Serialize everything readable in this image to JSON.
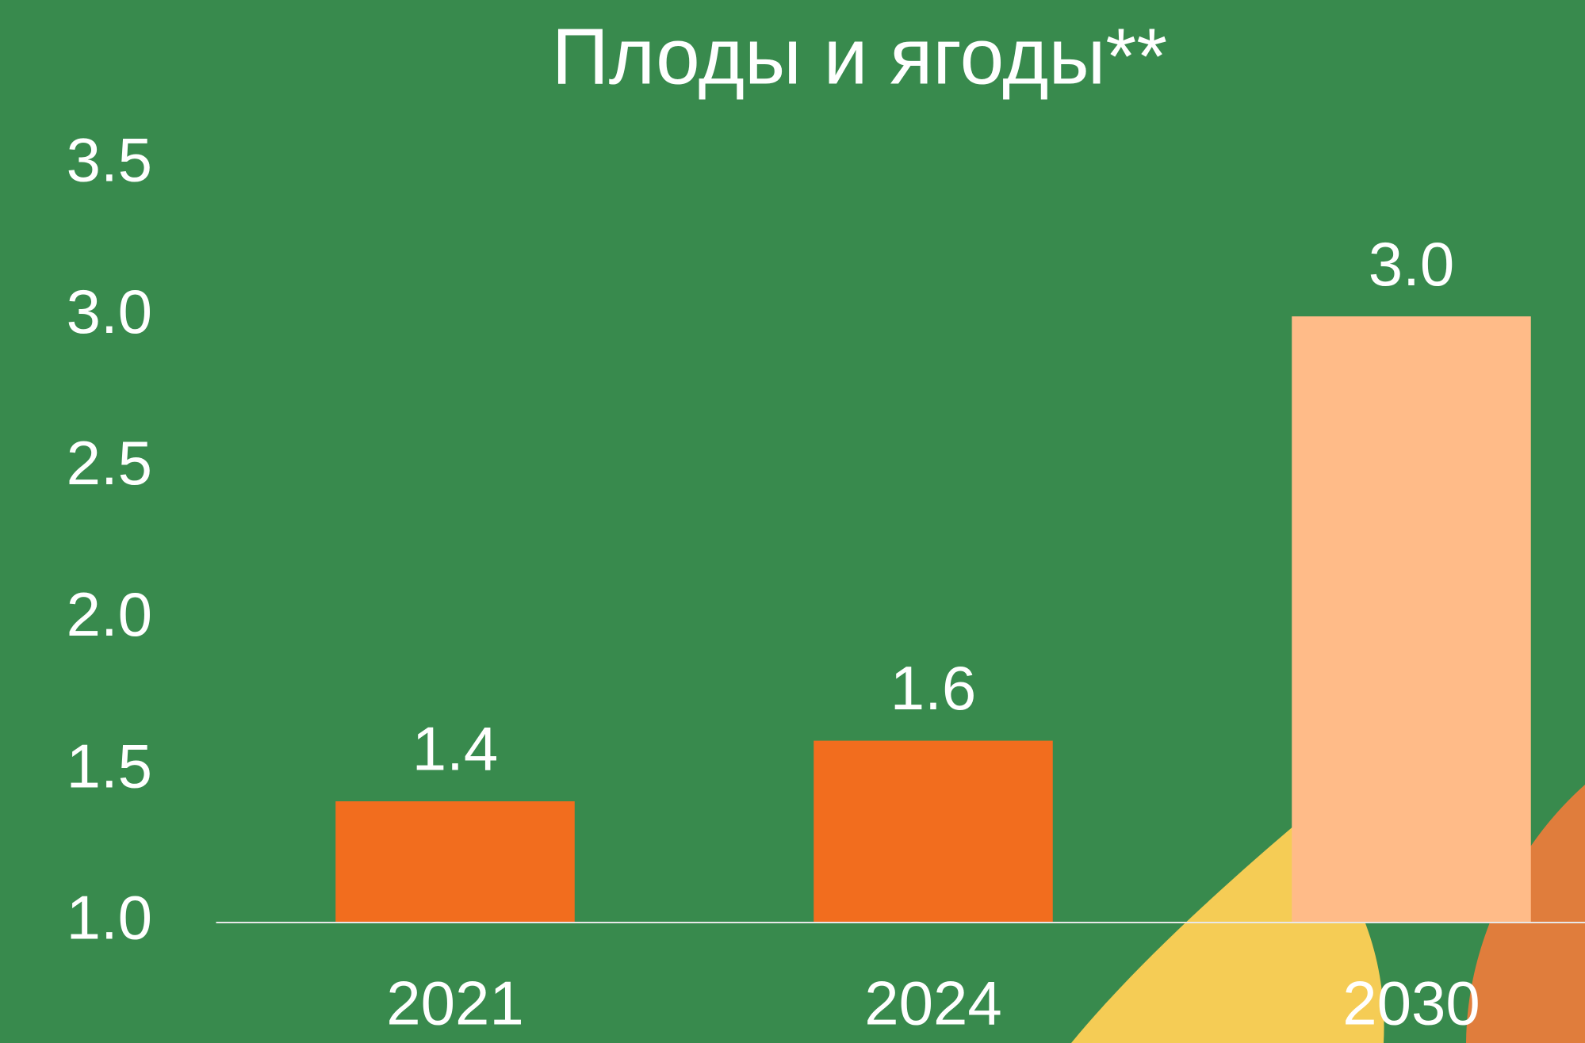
{
  "chart_data": {
    "type": "bar",
    "title": "Плоды и ягоды**",
    "categories": [
      "2021",
      "2024",
      "2030"
    ],
    "values": [
      1.4,
      1.6,
      3.0
    ],
    "value_labels": [
      "1.4",
      "1.6",
      "3.0"
    ],
    "colors": [
      "#f26d1e",
      "#f26d1e",
      "#ffbb88"
    ],
    "ylim": [
      1.0,
      3.5
    ],
    "yticks": [
      {
        "value": 1.0,
        "label": "1.0"
      },
      1.5,
      {
        "value": 2.0,
        "label": "2.0"
      },
      2.5,
      {
        "value": 3.0,
        "label": "3.0"
      },
      3.5
    ],
    "grid": false
  }
}
